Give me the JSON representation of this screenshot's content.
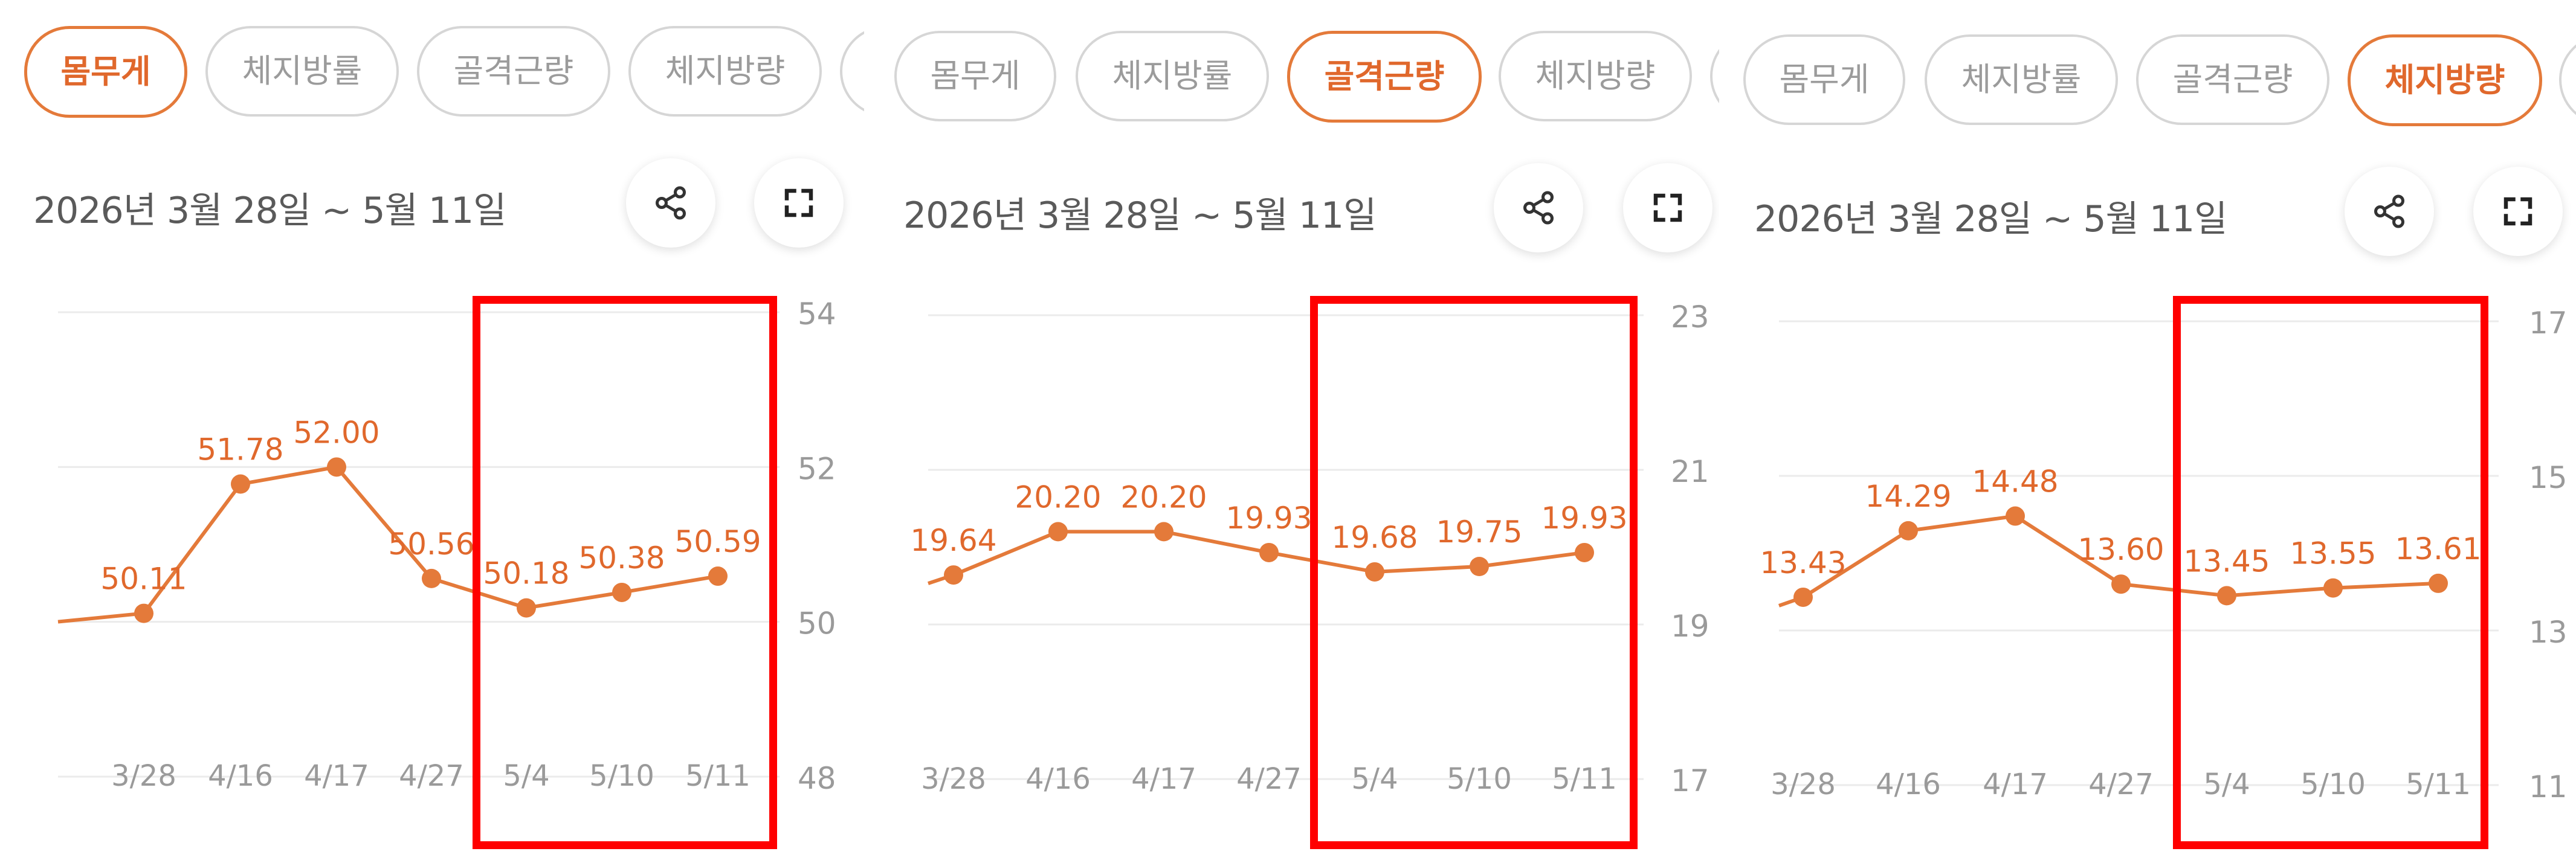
{
  "colors": {
    "accent": "#e0682c",
    "line": "#e47a3a",
    "highlight": "#ff0000",
    "grid": "#ebebeb",
    "axis_label": "#9a9a9a"
  },
  "panels": [
    {
      "tabs": [
        {
          "label": "몸무게",
          "active": true
        },
        {
          "label": "체지방률",
          "active": false
        },
        {
          "label": "골격근량",
          "active": false
        },
        {
          "label": "체지방량",
          "active": false
        },
        {
          "label": "",
          "active": false
        }
      ],
      "date_range": "2026년 3월 28일 ~ 5월 11일",
      "share_icon": "share-icon",
      "fullscreen_icon": "fullscreen-icon"
    },
    {
      "tabs": [
        {
          "label": "몸무게",
          "active": false
        },
        {
          "label": "체지방률",
          "active": false
        },
        {
          "label": "골격근량",
          "active": true
        },
        {
          "label": "체지방량",
          "active": false
        },
        {
          "label": "",
          "active": false
        }
      ],
      "date_range": "2026년 3월 28일 ~ 5월 11일",
      "share_icon": "share-icon",
      "fullscreen_icon": "fullscreen-icon"
    },
    {
      "tabs": [
        {
          "label": "몸무게",
          "active": false
        },
        {
          "label": "체지방률",
          "active": false
        },
        {
          "label": "골격근량",
          "active": false
        },
        {
          "label": "체지방량",
          "active": true
        },
        {
          "label": "",
          "active": false
        }
      ],
      "date_range": "2026년 3월 28일 ~ 5월 11일",
      "share_icon": "share-icon",
      "fullscreen_icon": "fullscreen-icon"
    }
  ],
  "chart_data": [
    {
      "type": "line",
      "categories": [
        "3/28",
        "4/16",
        "4/17",
        "4/27",
        "5/4",
        "5/10",
        "5/11"
      ],
      "values": [
        50.11,
        51.78,
        52.0,
        50.56,
        50.18,
        50.38,
        50.59
      ],
      "labels": [
        "50.11",
        "51.78",
        "52.00",
        "50.56",
        "50.18",
        "50.38",
        "50.59"
      ],
      "yticks": [
        48,
        50,
        52,
        54
      ],
      "ylim": [
        48,
        54
      ],
      "grid": true,
      "highlight": {
        "from": "5/4",
        "to": "5/11"
      }
    },
    {
      "type": "line",
      "categories": [
        "3/28",
        "4/16",
        "4/17",
        "4/27",
        "5/4",
        "5/10",
        "5/11"
      ],
      "values": [
        19.64,
        20.2,
        20.2,
        19.93,
        19.68,
        19.75,
        19.93
      ],
      "labels": [
        "19.64",
        "20.20",
        "20.20",
        "19.93",
        "19.68",
        "19.75",
        "19.93"
      ],
      "yticks": [
        17,
        19,
        21,
        23
      ],
      "ylim": [
        17,
        23
      ],
      "grid": true,
      "highlight": {
        "from": "5/4",
        "to": "5/11"
      }
    },
    {
      "type": "line",
      "categories": [
        "3/28",
        "4/16",
        "4/17",
        "4/27",
        "5/4",
        "5/10",
        "5/11"
      ],
      "values": [
        13.43,
        14.29,
        14.48,
        13.6,
        13.45,
        13.55,
        13.61
      ],
      "labels": [
        "13.43",
        "14.29",
        "14.48",
        "13.60",
        "13.45",
        "13.55",
        "13.61"
      ],
      "yticks": [
        11,
        13,
        15,
        17
      ],
      "ylim": [
        11,
        17
      ],
      "grid": true,
      "highlight": {
        "from": "5/4",
        "to": "5/11"
      }
    }
  ]
}
